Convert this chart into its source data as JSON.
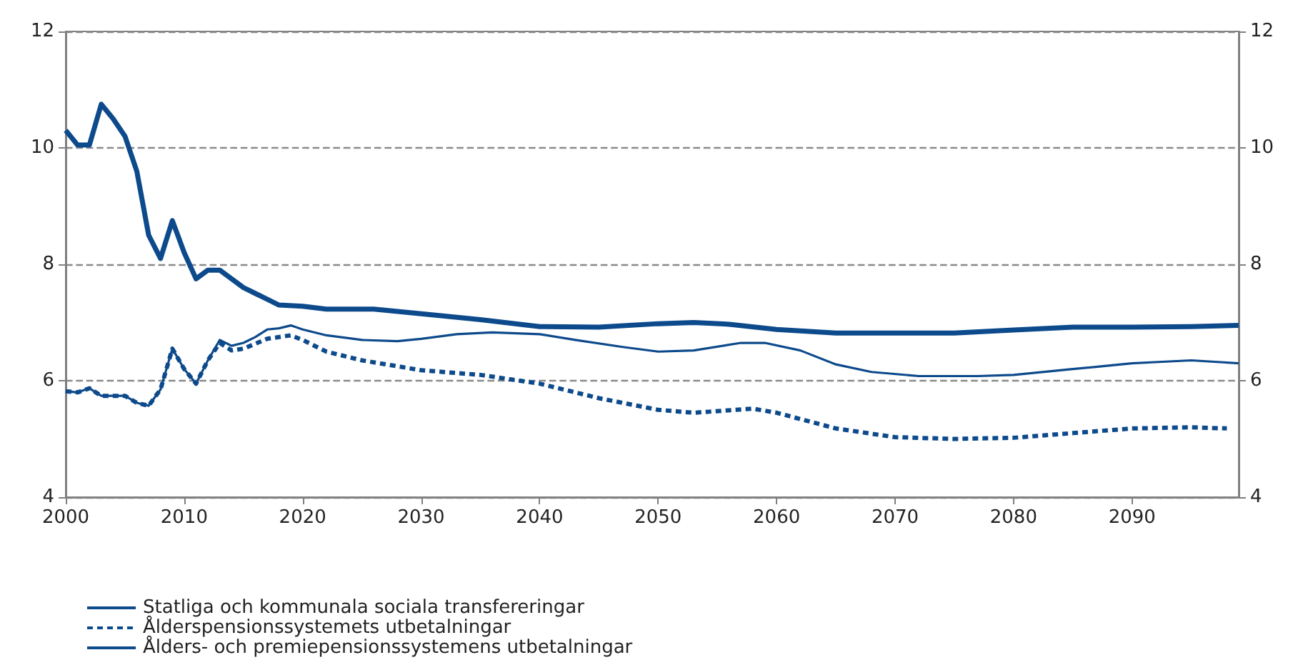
{
  "chart_data": {
    "type": "line",
    "xlim": [
      2000,
      2099
    ],
    "xticks": [
      2000,
      2010,
      2020,
      2030,
      2040,
      2050,
      2060,
      2070,
      2080,
      2090
    ],
    "ylim": [
      4,
      12
    ],
    "yticks": [
      4,
      6,
      8,
      10,
      12
    ],
    "y2lim": [
      4,
      12
    ],
    "y2ticks": [
      4,
      6,
      8,
      10,
      12
    ],
    "grid": "y",
    "legend": "bottom left",
    "marker": "none",
    "series": [
      {
        "name": "Statliga och kommunala sociala transfereringar",
        "color": "#0d4a8c",
        "line_style": "solid",
        "x": [
          2000,
          2001,
          2002,
          2003,
          2004,
          2005,
          2006,
          2007,
          2008,
          2009,
          2010,
          2011,
          2012,
          2013,
          2014,
          2015,
          2016,
          2017,
          2018,
          2020,
          2022,
          2026,
          2030,
          2035,
          2040,
          2045,
          2050,
          2053,
          2056,
          2060,
          2065,
          2070,
          2075,
          2080,
          2085,
          2090,
          2095,
          2099
        ],
        "values": [
          10.3,
          10.05,
          10.05,
          10.75,
          10.5,
          10.2,
          9.6,
          8.5,
          8.1,
          8.75,
          8.2,
          7.75,
          7.9,
          7.9,
          7.75,
          7.6,
          7.5,
          7.4,
          7.3,
          7.28,
          7.23,
          7.23,
          7.15,
          7.05,
          6.93,
          6.92,
          6.98,
          7.0,
          6.97,
          6.88,
          6.82,
          6.82,
          6.82,
          6.87,
          6.92,
          6.92,
          6.93,
          6.95
        ]
      },
      {
        "name": "Ålderspensionssystemets utbetalningar",
        "color": "#0d4a8c",
        "line_style": "dashed",
        "x": [
          2000,
          2001,
          2002,
          2003,
          2004,
          2005,
          2006,
          2007,
          2008,
          2009,
          2010,
          2011,
          2012,
          2013,
          2014,
          2015,
          2017,
          2019,
          2020,
          2022,
          2025,
          2030,
          2035,
          2040,
          2045,
          2050,
          2053,
          2058,
          2060,
          2065,
          2070,
          2075,
          2080,
          2085,
          2090,
          2095,
          2098
        ],
        "values": [
          5.82,
          5.8,
          5.87,
          5.74,
          5.74,
          5.74,
          5.62,
          5.57,
          5.85,
          6.55,
          6.2,
          5.95,
          6.35,
          6.65,
          6.52,
          6.55,
          6.72,
          6.78,
          6.7,
          6.5,
          6.35,
          6.18,
          6.1,
          5.95,
          5.7,
          5.5,
          5.45,
          5.52,
          5.45,
          5.18,
          5.03,
          5.0,
          5.02,
          5.1,
          5.18,
          5.2,
          5.18
        ]
      },
      {
        "name": "Ålders- och premiepensionssystemens utbetalningar",
        "color": "#0d4a8c",
        "line_style": "solid",
        "x": [
          2000,
          2001,
          2002,
          2003,
          2004,
          2005,
          2006,
          2007,
          2008,
          2009,
          2010,
          2011,
          2012,
          2013,
          2014,
          2015,
          2016,
          2017,
          2018,
          2019,
          2020,
          2022,
          2025,
          2028,
          2030,
          2033,
          2036,
          2040,
          2043,
          2047,
          2050,
          2053,
          2057,
          2059,
          2062,
          2065,
          2068,
          2072,
          2077,
          2080,
          2085,
          2090,
          2095,
          2099
        ],
        "values": [
          5.82,
          5.8,
          5.87,
          5.74,
          5.74,
          5.74,
          5.62,
          5.57,
          5.85,
          6.55,
          6.2,
          5.95,
          6.35,
          6.7,
          6.6,
          6.65,
          6.75,
          6.88,
          6.9,
          6.95,
          6.88,
          6.78,
          6.7,
          6.68,
          6.72,
          6.8,
          6.83,
          6.8,
          6.7,
          6.58,
          6.5,
          6.52,
          6.65,
          6.65,
          6.52,
          6.28,
          6.15,
          6.08,
          6.08,
          6.1,
          6.2,
          6.3,
          6.35,
          6.3
        ]
      }
    ]
  }
}
